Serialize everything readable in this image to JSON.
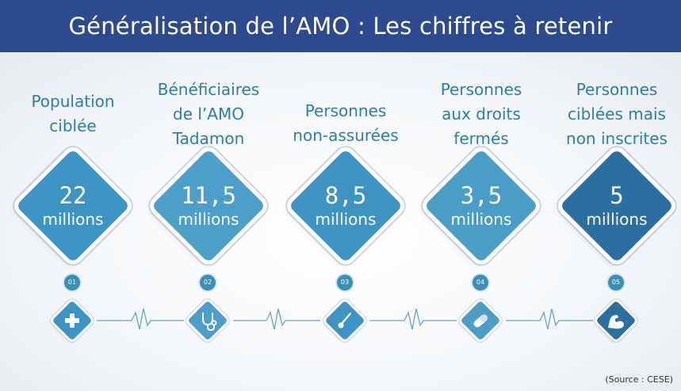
{
  "header": {
    "title": "Généralisation de l’AMO : Les chiffres à retenir"
  },
  "items": [
    {
      "label_lines": [
        "Population",
        "ciblée"
      ],
      "value": "22",
      "unit": "millions",
      "step": "01",
      "icon": "medical-cross-icon",
      "color": "#3b94c3"
    },
    {
      "label_lines": [
        "Bénéficiaires",
        "de l’AMO",
        "Tadamon"
      ],
      "value": "11,5",
      "unit": "millions",
      "step": "02",
      "icon": "stethoscope-icon",
      "color": "#4b9fc9"
    },
    {
      "label_lines": [
        "Personnes",
        "non-assurées"
      ],
      "value": "8,5",
      "unit": "millions",
      "step": "03",
      "icon": "thermometer-icon",
      "color": "#3d93c2"
    },
    {
      "label_lines": [
        "Personnes",
        "aux droits",
        "fermés"
      ],
      "value": "3,5",
      "unit": "millions",
      "step": "04",
      "icon": "pill-icon",
      "color": "#4a9dc6"
    },
    {
      "label_lines": [
        "Personnes",
        "ciblées mais",
        "non inscrites"
      ],
      "value": "5",
      "unit": "millions",
      "step": "05",
      "icon": "arm-muscle-icon",
      "color": "#2a6f9f"
    }
  ],
  "source": "(Source : CESE)"
}
